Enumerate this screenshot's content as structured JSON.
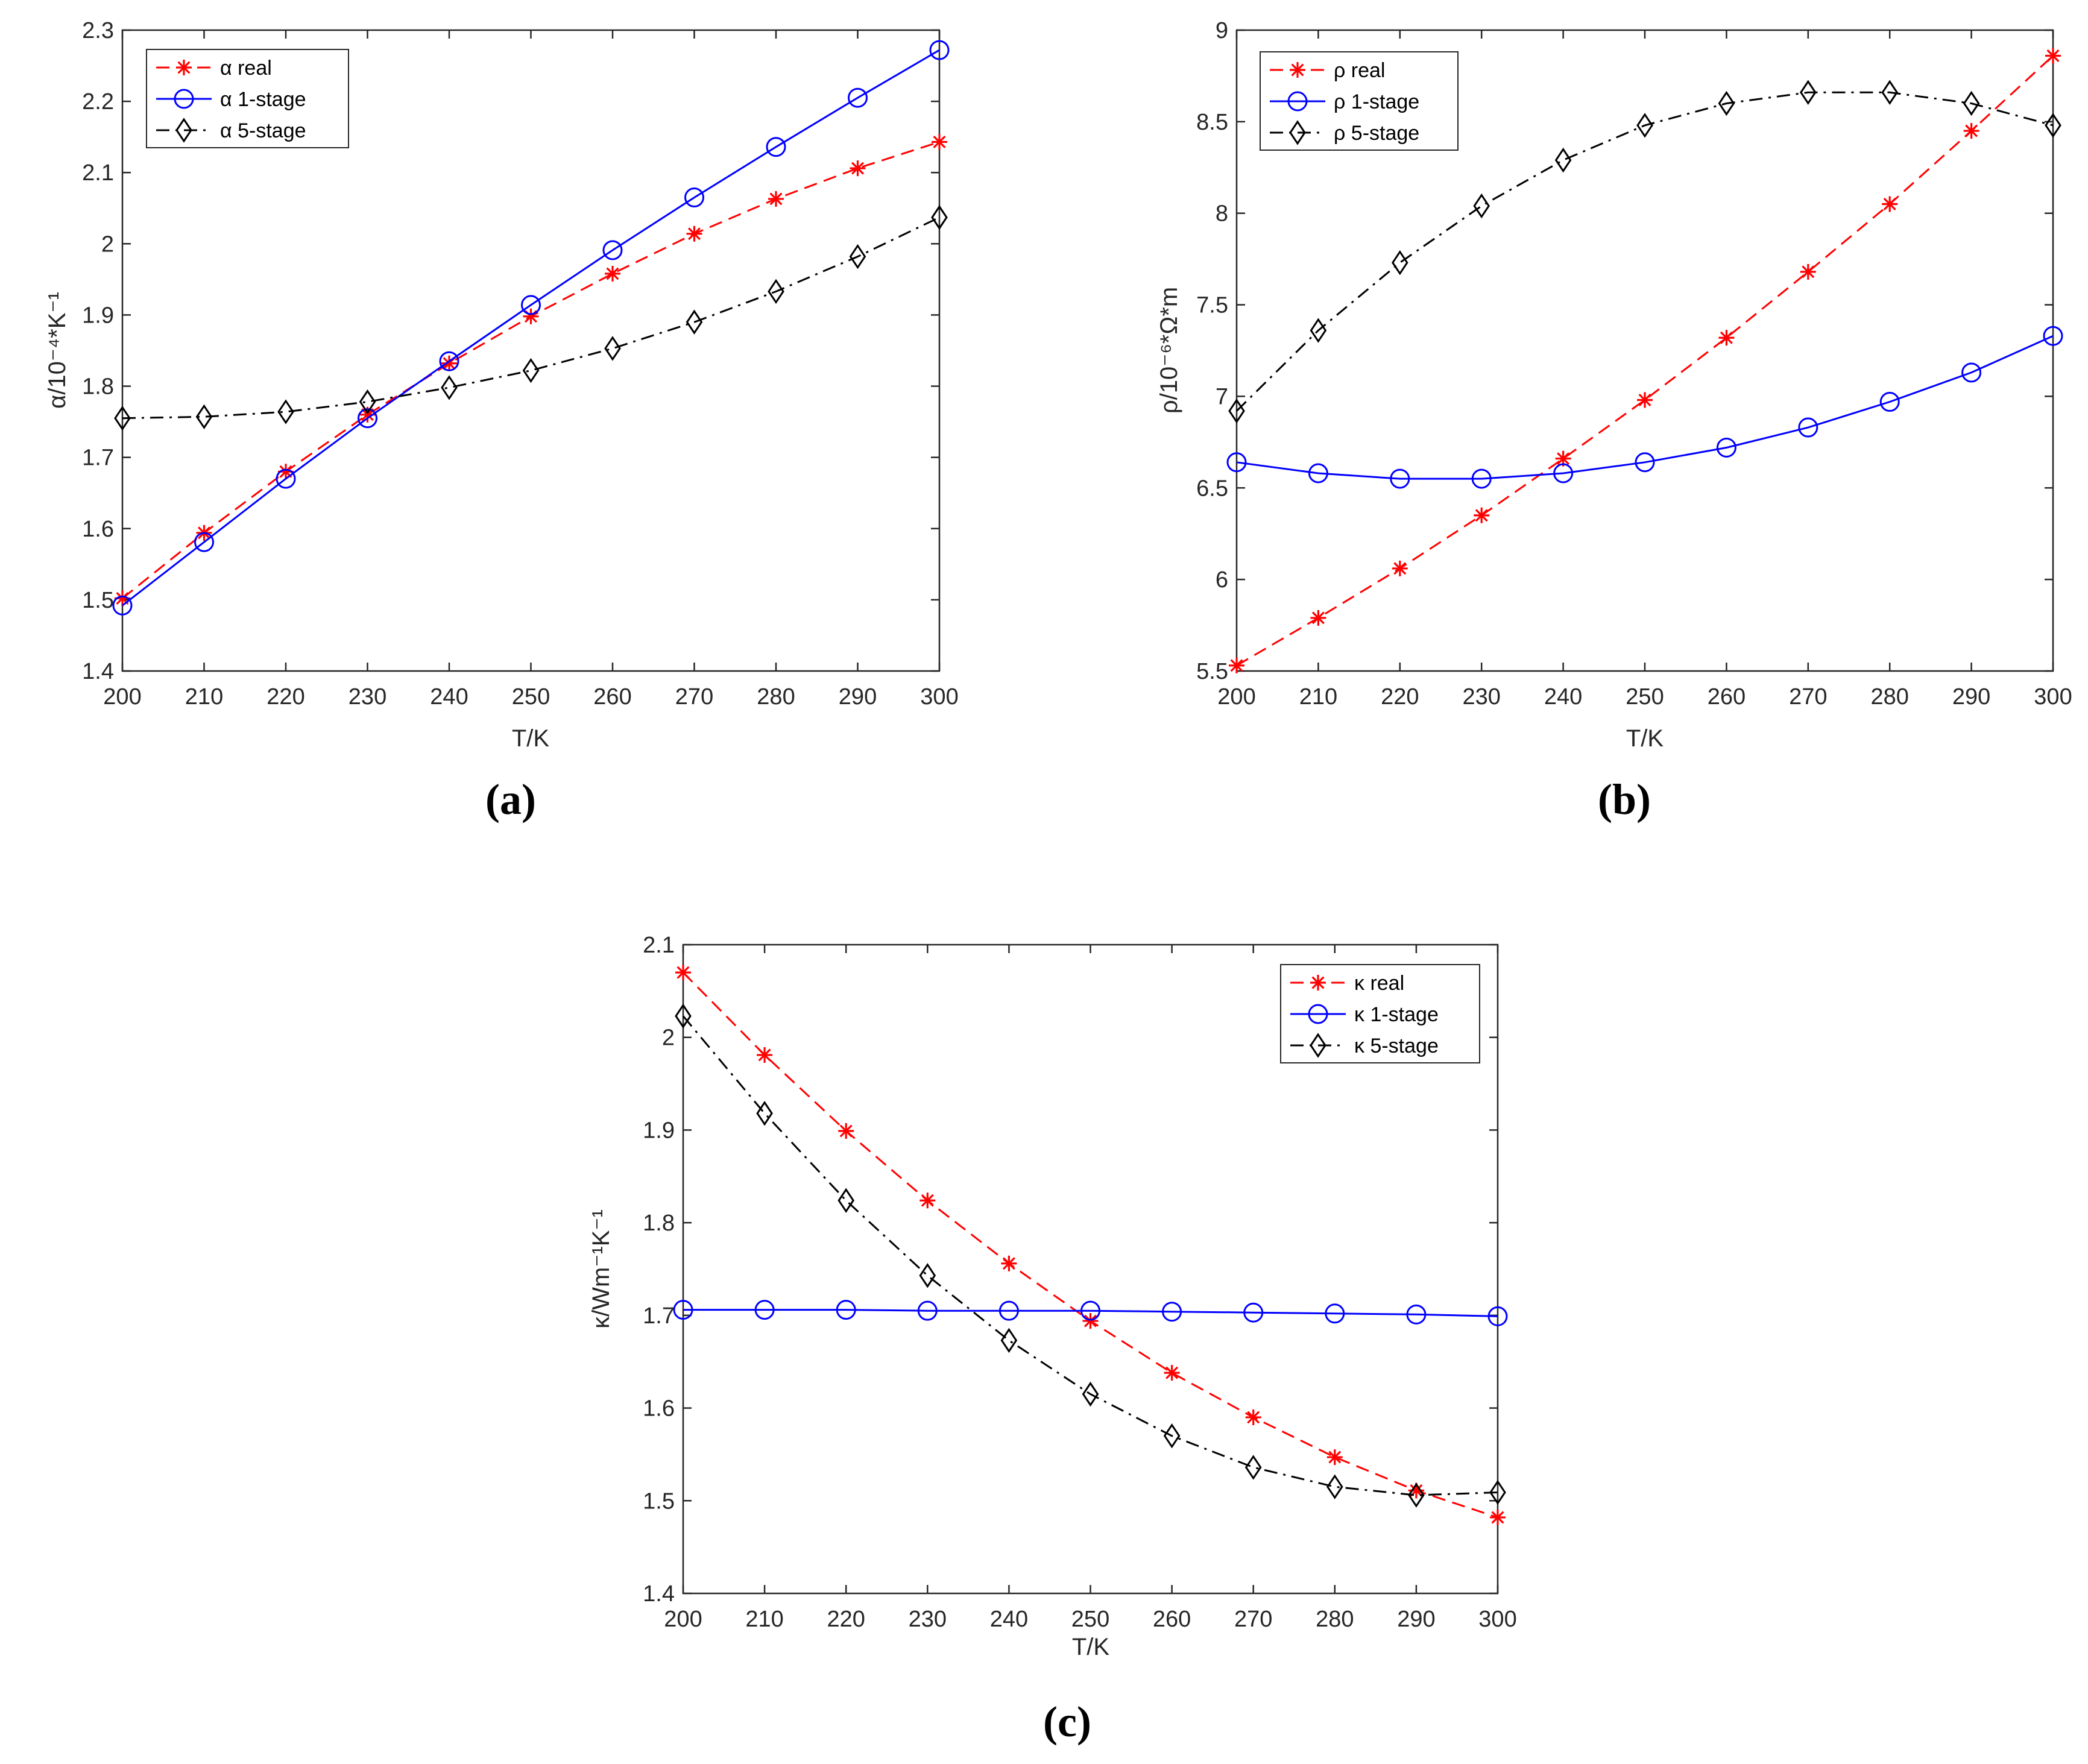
{
  "chart_data": [
    {
      "type": "line",
      "panel_label": "(a)",
      "xlabel": "T/K",
      "ylabel": "α/10⁻⁴*K⁻¹",
      "xlim": [
        200,
        300
      ],
      "ylim": [
        1.4,
        2.3
      ],
      "xticks": [
        "200",
        "210",
        "220",
        "230",
        "240",
        "250",
        "260",
        "270",
        "280",
        "290",
        "300"
      ],
      "yticks": [
        "1.4",
        "1.5",
        "1.6",
        "1.7",
        "1.8",
        "1.9",
        "2",
        "2.1",
        "2.2",
        "2.3"
      ],
      "legend_position": "top-left",
      "x": [
        200,
        210,
        220,
        230,
        240,
        250,
        260,
        270,
        280,
        290,
        300
      ],
      "series": [
        {
          "name": "α real",
          "color": "#ff0000",
          "line": "dashed",
          "marker": "asterisk",
          "values": [
            1.502,
            1.594,
            1.68,
            1.76,
            1.832,
            1.898,
            1.958,
            2.014,
            2.063,
            2.106,
            2.143
          ]
        },
        {
          "name": "α 1-stage",
          "color": "#0000ff",
          "line": "solid",
          "marker": "circle",
          "values": [
            1.492,
            1.581,
            1.67,
            1.755,
            1.835,
            1.914,
            1.991,
            2.065,
            2.136,
            2.205,
            2.272
          ]
        },
        {
          "name": "α 5-stage",
          "color": "#000000",
          "line": "dashdot",
          "marker": "diamond",
          "values": [
            1.755,
            1.757,
            1.764,
            1.778,
            1.798,
            1.822,
            1.853,
            1.89,
            1.933,
            1.982,
            2.037
          ]
        }
      ]
    },
    {
      "type": "line",
      "panel_label": "(b)",
      "xlabel": "T/K",
      "ylabel": "ρ/10⁻⁶*Ω*m",
      "xlim": [
        200,
        300
      ],
      "ylim": [
        5.5,
        9
      ],
      "xticks": [
        "200",
        "210",
        "220",
        "230",
        "240",
        "250",
        "260",
        "270",
        "280",
        "290",
        "300"
      ],
      "yticks": [
        "5.5",
        "6",
        "6.5",
        "7",
        "7.5",
        "8",
        "8.5",
        "9"
      ],
      "legend_position": "top-left",
      "x": [
        200,
        210,
        220,
        230,
        240,
        250,
        260,
        270,
        280,
        290,
        300
      ],
      "series": [
        {
          "name": "ρ real",
          "color": "#ff0000",
          "line": "dashed",
          "marker": "asterisk",
          "values": [
            5.53,
            5.79,
            6.06,
            6.35,
            6.66,
            6.98,
            7.32,
            7.68,
            8.05,
            8.45,
            8.86
          ]
        },
        {
          "name": "ρ 1-stage",
          "color": "#0000ff",
          "line": "solid",
          "marker": "circle",
          "values": [
            6.64,
            6.58,
            6.55,
            6.55,
            6.58,
            6.64,
            6.72,
            6.83,
            6.97,
            7.13,
            7.33
          ]
        },
        {
          "name": "ρ 5-stage",
          "color": "#000000",
          "line": "dashdot",
          "marker": "diamond",
          "values": [
            6.92,
            7.36,
            7.73,
            8.04,
            8.29,
            8.48,
            8.6,
            8.66,
            8.66,
            8.6,
            8.48
          ]
        }
      ]
    },
    {
      "type": "line",
      "panel_label": "(c)",
      "xlabel": "T/K",
      "ylabel": "κ/Wm⁻¹K⁻¹",
      "xlim": [
        200,
        300
      ],
      "ylim": [
        1.4,
        2.1
      ],
      "xticks": [
        "200",
        "210",
        "220",
        "230",
        "240",
        "250",
        "260",
        "270",
        "280",
        "290",
        "300"
      ],
      "yticks": [
        "1.4",
        "1.5",
        "1.6",
        "1.7",
        "1.8",
        "1.9",
        "2",
        "2.1"
      ],
      "legend_position": "top-right",
      "x": [
        200,
        210,
        220,
        230,
        240,
        250,
        260,
        270,
        280,
        290,
        300
      ],
      "series": [
        {
          "name": "κ real",
          "color": "#ff0000",
          "line": "dashed",
          "marker": "asterisk",
          "values": [
            2.07,
            1.981,
            1.899,
            1.824,
            1.756,
            1.694,
            1.638,
            1.59,
            1.547,
            1.511,
            1.482
          ]
        },
        {
          "name": "κ 1-stage",
          "color": "#0000ff",
          "line": "solid",
          "marker": "circle",
          "values": [
            1.706,
            1.706,
            1.706,
            1.705,
            1.705,
            1.705,
            1.704,
            1.703,
            1.702,
            1.701,
            1.699
          ]
        },
        {
          "name": "κ 5-stage",
          "color": "#000000",
          "line": "dashdot",
          "marker": "diamond",
          "values": [
            2.023,
            1.918,
            1.824,
            1.743,
            1.673,
            1.615,
            1.57,
            1.536,
            1.515,
            1.506,
            1.509
          ]
        }
      ]
    }
  ]
}
